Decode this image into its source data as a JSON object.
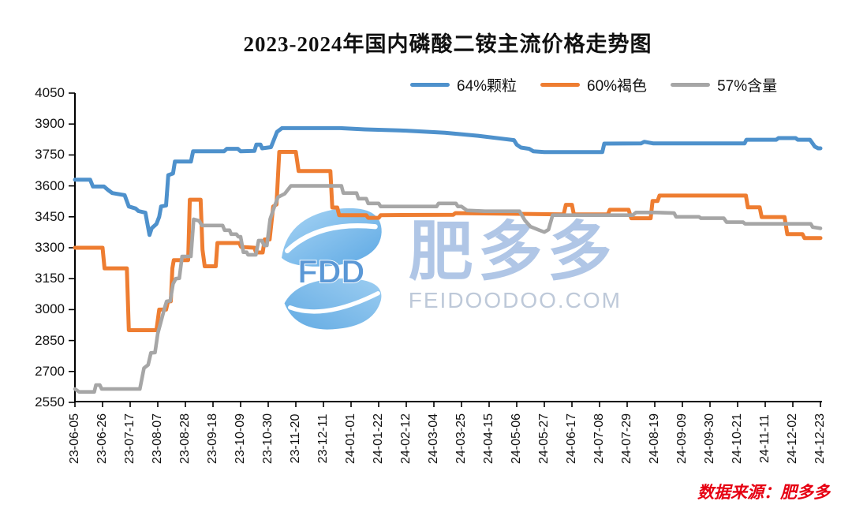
{
  "title": "2023-2024年国内磷酸二铵主流价格走势图",
  "source_note": "数据来源：肥多多",
  "watermark": {
    "logo_text": "FDD",
    "brand_text": "肥多多",
    "site_text": "FEIDOODOO.COM"
  },
  "colors": {
    "axis": "#000000",
    "blue": "#4e91cc",
    "orange": "#ee7d31",
    "gray": "#a6a6a6"
  },
  "chart_data": {
    "type": "line",
    "title": "2023-2024年国内磷酸二铵主流价格走势图",
    "xlabel": "",
    "ylabel": "",
    "ylim": [
      2550,
      4050
    ],
    "y_ticks": [
      2550,
      2700,
      2850,
      3000,
      3150,
      3300,
      3450,
      3600,
      3750,
      3900,
      4050
    ],
    "grid": false,
    "legend_position": "top",
    "x_tick_labels": [
      "23-06-05",
      "23-06-26",
      "23-07-17",
      "23-08-07",
      "23-08-28",
      "23-09-18",
      "23-10-09",
      "23-10-30",
      "23-11-20",
      "23-12-11",
      "24-01-01",
      "24-01-22",
      "24-02-12",
      "24-03-04",
      "24-03-25",
      "24-04-15",
      "24-05-06",
      "24-05-27",
      "24-06-17",
      "24-07-08",
      "24-07-29",
      "24-08-19",
      "24-09-09",
      "24-09-30",
      "24-10-21",
      "24-11-11",
      "24-12-02",
      "24-12-23"
    ],
    "x_unit_note": "series x values are in tick-index units, 0 = 23-06-05, 27 = 24-12-23",
    "series": [
      {
        "name": "64%颗粒",
        "color": "#4e91cc",
        "width": 5,
        "points": [
          [
            0,
            3630
          ],
          [
            0.55,
            3630
          ],
          [
            0.65,
            3597
          ],
          [
            1.05,
            3597
          ],
          [
            1.2,
            3580
          ],
          [
            1.35,
            3565
          ],
          [
            1.8,
            3555
          ],
          [
            1.95,
            3500
          ],
          [
            2.2,
            3490
          ],
          [
            2.3,
            3478
          ],
          [
            2.55,
            3470
          ],
          [
            2.62,
            3420
          ],
          [
            2.7,
            3362
          ],
          [
            2.78,
            3395
          ],
          [
            2.95,
            3415
          ],
          [
            3.05,
            3450
          ],
          [
            3.12,
            3500
          ],
          [
            3.3,
            3505
          ],
          [
            3.38,
            3652
          ],
          [
            3.55,
            3660
          ],
          [
            3.62,
            3718
          ],
          [
            4.2,
            3718
          ],
          [
            4.28,
            3768
          ],
          [
            5.4,
            3768
          ],
          [
            5.5,
            3780
          ],
          [
            5.9,
            3780
          ],
          [
            6.0,
            3768
          ],
          [
            6.5,
            3770
          ],
          [
            6.57,
            3800
          ],
          [
            6.72,
            3800
          ],
          [
            6.78,
            3782
          ],
          [
            7.1,
            3788
          ],
          [
            7.32,
            3862
          ],
          [
            7.5,
            3880
          ],
          [
            9.6,
            3880
          ],
          [
            10.5,
            3874
          ],
          [
            12.0,
            3868
          ],
          [
            13.4,
            3858
          ],
          [
            14.6,
            3843
          ],
          [
            15.9,
            3822
          ],
          [
            16.0,
            3800
          ],
          [
            16.15,
            3786
          ],
          [
            16.45,
            3780
          ],
          [
            16.6,
            3768
          ],
          [
            17.0,
            3764
          ],
          [
            19.1,
            3764
          ],
          [
            19.17,
            3805
          ],
          [
            20.5,
            3806
          ],
          [
            20.62,
            3814
          ],
          [
            20.95,
            3806
          ],
          [
            24.25,
            3806
          ],
          [
            24.32,
            3824
          ],
          [
            25.4,
            3824
          ],
          [
            25.48,
            3832
          ],
          [
            26.1,
            3832
          ],
          [
            26.18,
            3824
          ],
          [
            26.62,
            3824
          ],
          [
            26.8,
            3790
          ],
          [
            26.92,
            3782
          ],
          [
            27,
            3782
          ]
        ]
      },
      {
        "name": "60%褐色",
        "color": "#ee7d31",
        "width": 5,
        "points": [
          [
            0,
            3300
          ],
          [
            1.0,
            3300
          ],
          [
            1.07,
            3200
          ],
          [
            1.88,
            3200
          ],
          [
            1.95,
            2900
          ],
          [
            2.95,
            2900
          ],
          [
            3.05,
            3000
          ],
          [
            3.3,
            3000
          ],
          [
            3.37,
            3040
          ],
          [
            3.47,
            3040
          ],
          [
            3.53,
            3200
          ],
          [
            3.58,
            3240
          ],
          [
            4.1,
            3240
          ],
          [
            4.16,
            3533
          ],
          [
            4.55,
            3533
          ],
          [
            4.62,
            3290
          ],
          [
            4.7,
            3210
          ],
          [
            5.1,
            3210
          ],
          [
            5.16,
            3323
          ],
          [
            5.95,
            3323
          ],
          [
            6.02,
            3304
          ],
          [
            6.5,
            3300
          ],
          [
            6.56,
            3277
          ],
          [
            6.8,
            3277
          ],
          [
            6.87,
            3340
          ],
          [
            7.05,
            3340
          ],
          [
            7.18,
            3500
          ],
          [
            7.3,
            3510
          ],
          [
            7.4,
            3765
          ],
          [
            8.0,
            3765
          ],
          [
            8.1,
            3672
          ],
          [
            9.25,
            3672
          ],
          [
            9.32,
            3495
          ],
          [
            9.5,
            3495
          ],
          [
            9.57,
            3458
          ],
          [
            10.55,
            3458
          ],
          [
            10.62,
            3445
          ],
          [
            11.0,
            3445
          ],
          [
            11.07,
            3458
          ],
          [
            13.7,
            3460
          ],
          [
            13.78,
            3468
          ],
          [
            17.7,
            3462
          ],
          [
            17.78,
            3508
          ],
          [
            18.0,
            3508
          ],
          [
            18.07,
            3462
          ],
          [
            19.3,
            3462
          ],
          [
            19.37,
            3484
          ],
          [
            20.05,
            3484
          ],
          [
            20.15,
            3443
          ],
          [
            20.85,
            3443
          ],
          [
            20.92,
            3527
          ],
          [
            21.1,
            3527
          ],
          [
            21.17,
            3553
          ],
          [
            24.3,
            3553
          ],
          [
            24.37,
            3496
          ],
          [
            24.8,
            3496
          ],
          [
            24.87,
            3449
          ],
          [
            25.7,
            3449
          ],
          [
            25.8,
            3366
          ],
          [
            26.35,
            3366
          ],
          [
            26.42,
            3347
          ],
          [
            27,
            3347
          ]
        ]
      },
      {
        "name": "57%含量",
        "color": "#a6a6a6",
        "width": 4.6,
        "points": [
          [
            0,
            2615
          ],
          [
            0.15,
            2601
          ],
          [
            0.7,
            2601
          ],
          [
            0.76,
            2634
          ],
          [
            0.9,
            2634
          ],
          [
            0.97,
            2615
          ],
          [
            2.35,
            2615
          ],
          [
            2.5,
            2716
          ],
          [
            2.65,
            2732
          ],
          [
            2.75,
            2790
          ],
          [
            2.9,
            2792
          ],
          [
            3.0,
            2884
          ],
          [
            3.1,
            2934
          ],
          [
            3.25,
            3010
          ],
          [
            3.32,
            3040
          ],
          [
            3.45,
            3042
          ],
          [
            3.55,
            3124
          ],
          [
            3.65,
            3150
          ],
          [
            3.78,
            3152
          ],
          [
            3.88,
            3258
          ],
          [
            4.2,
            3258
          ],
          [
            4.3,
            3438
          ],
          [
            4.5,
            3430
          ],
          [
            4.6,
            3408
          ],
          [
            5.35,
            3408
          ],
          [
            5.42,
            3385
          ],
          [
            5.6,
            3385
          ],
          [
            5.66,
            3366
          ],
          [
            5.85,
            3366
          ],
          [
            5.92,
            3353
          ],
          [
            6.0,
            3353
          ],
          [
            6.1,
            3278
          ],
          [
            6.22,
            3278
          ],
          [
            6.27,
            3266
          ],
          [
            6.55,
            3266
          ],
          [
            6.65,
            3335
          ],
          [
            6.77,
            3335
          ],
          [
            6.85,
            3311
          ],
          [
            6.95,
            3311
          ],
          [
            7.07,
            3438
          ],
          [
            7.2,
            3490
          ],
          [
            7.35,
            3545
          ],
          [
            7.6,
            3562
          ],
          [
            7.82,
            3600
          ],
          [
            9.65,
            3600
          ],
          [
            9.72,
            3565
          ],
          [
            10.2,
            3565
          ],
          [
            10.27,
            3538
          ],
          [
            10.55,
            3538
          ],
          [
            10.62,
            3515
          ],
          [
            11.0,
            3515
          ],
          [
            11.07,
            3500
          ],
          [
            13.1,
            3500
          ],
          [
            13.17,
            3515
          ],
          [
            13.8,
            3515
          ],
          [
            13.87,
            3500
          ],
          [
            14.0,
            3500
          ],
          [
            14.2,
            3481
          ],
          [
            14.85,
            3477
          ],
          [
            16.1,
            3477
          ],
          [
            16.3,
            3432
          ],
          [
            16.5,
            3402
          ],
          [
            16.8,
            3386
          ],
          [
            17.0,
            3376
          ],
          [
            17.15,
            3388
          ],
          [
            17.3,
            3458
          ],
          [
            20.2,
            3458
          ],
          [
            20.32,
            3471
          ],
          [
            21.05,
            3471
          ],
          [
            21.7,
            3468
          ],
          [
            21.77,
            3450
          ],
          [
            22.6,
            3450
          ],
          [
            22.67,
            3443
          ],
          [
            23.5,
            3443
          ],
          [
            23.6,
            3424
          ],
          [
            24.2,
            3424
          ],
          [
            24.27,
            3416
          ],
          [
            26.65,
            3416
          ],
          [
            26.72,
            3400
          ],
          [
            27,
            3394
          ]
        ]
      }
    ]
  }
}
